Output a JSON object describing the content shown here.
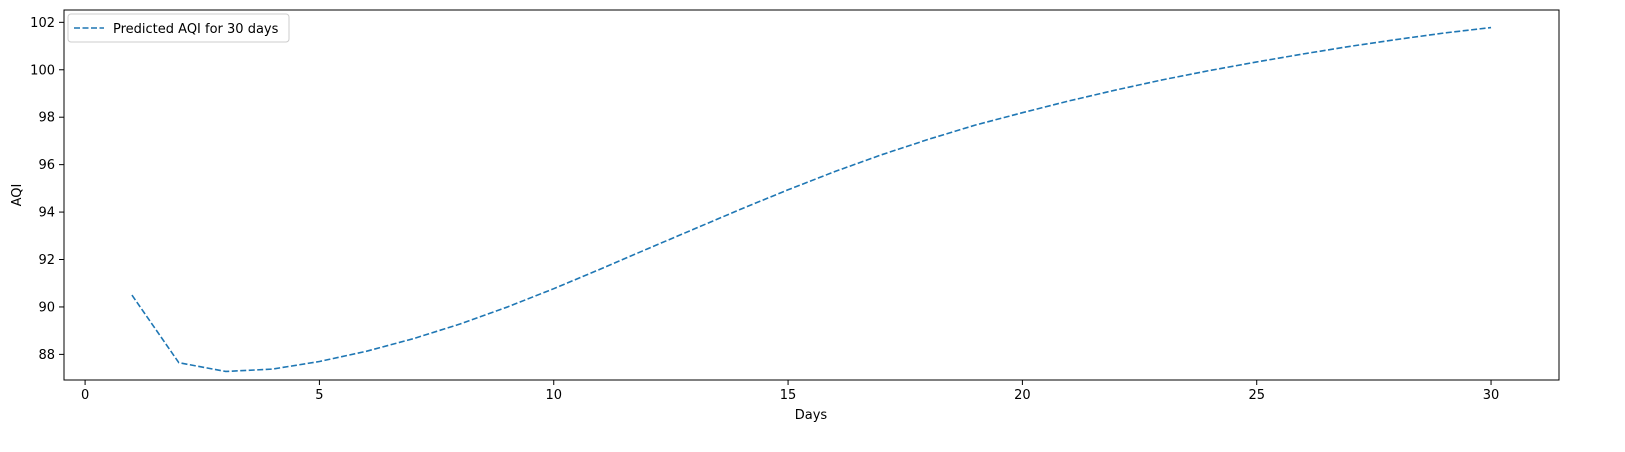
{
  "chart_data": {
    "type": "line",
    "title": "",
    "xlabel": "Days",
    "ylabel": "AQI",
    "xlim": [
      -0.45,
      31.45
    ],
    "ylim": [
      86.92,
      102.52
    ],
    "xticks": [
      0,
      5,
      10,
      15,
      20,
      25,
      30
    ],
    "yticks": [
      88,
      90,
      92,
      94,
      96,
      98,
      100,
      102
    ],
    "grid": false,
    "legend_position": "top-left",
    "series": [
      {
        "name": "Predicted AQI for 30 days",
        "color": "#1f77b4",
        "line_style": "dashed",
        "x": [
          1,
          2,
          3,
          4,
          5,
          6,
          7,
          8,
          9,
          10,
          11,
          12,
          13,
          14,
          15,
          16,
          17,
          18,
          19,
          20,
          21,
          22,
          23,
          24,
          25,
          26,
          27,
          28,
          29,
          30
        ],
        "y": [
          90.5,
          87.65,
          87.28,
          87.38,
          87.7,
          88.13,
          88.66,
          89.28,
          89.99,
          90.77,
          91.6,
          92.45,
          93.29,
          94.13,
          94.94,
          95.71,
          96.42,
          97.07,
          97.67,
          98.19,
          98.69,
          99.15,
          99.58,
          99.97,
          100.33,
          100.67,
          100.99,
          101.28,
          101.55,
          101.78
        ]
      }
    ]
  }
}
